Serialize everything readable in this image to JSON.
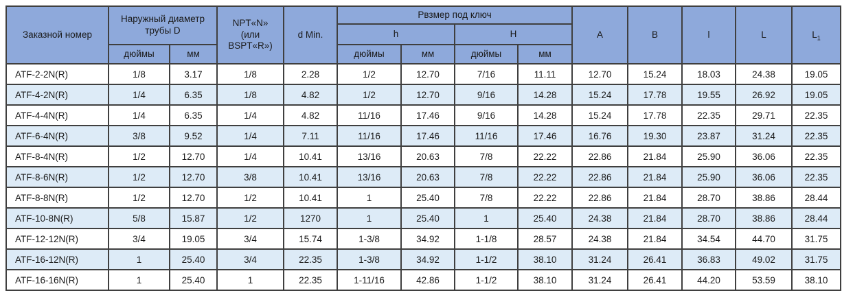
{
  "colors": {
    "header_bg": "#8EA9DB",
    "stripe_bg": "#DDEBF7",
    "row_bg": "#FFFFFF",
    "border": "#3f3f3f",
    "text": "#1a1a1a"
  },
  "table": {
    "header": {
      "order_number": "Заказной номер",
      "outer_diameter": "Наружный диаметр трубы D",
      "npt": "NPT«N»\n(или\nBSPT«R»)",
      "d_min": "d Min.",
      "wrench_size": "Рвзмер под ключ",
      "h_lower": "h",
      "h_upper": "H",
      "inches_d": "дюймы",
      "mm_d": "мм",
      "inches_h": "дюймы",
      "mm_h": "мм",
      "inches_H": "дюймы",
      "mm_H": "мм",
      "A": "A",
      "B": "B",
      "l": "l",
      "L": "L",
      "L1_base": "L",
      "L1_sub": "1"
    },
    "column_keys": [
      "order_number",
      "d_inches",
      "d_mm",
      "npt",
      "d_min",
      "h_inches",
      "h_mm",
      "H_inches",
      "H_mm",
      "A",
      "B",
      "l",
      "L",
      "L1"
    ],
    "rows": [
      [
        "ATF-2-2N(R)",
        "1/8",
        "3.17",
        "1/8",
        "2.28",
        "1/2",
        "12.70",
        "7/16",
        "11.11",
        "12.70",
        "15.24",
        "18.03",
        "24.38",
        "19.05"
      ],
      [
        "ATF-4-2N(R)",
        "1/4",
        "6.35",
        "1/8",
        "4.82",
        "1/2",
        "12.70",
        "9/16",
        "14.28",
        "15.24",
        "17.78",
        "19.55",
        "26.92",
        "19.05"
      ],
      [
        "ATF-4-4N(R)",
        "1/4",
        "6.35",
        "1/4",
        "4.82",
        "11/16",
        "17.46",
        "9/16",
        "14.28",
        "15.24",
        "17.78",
        "22.35",
        "29.71",
        "22.35"
      ],
      [
        "ATF-6-4N(R)",
        "3/8",
        "9.52",
        "1/4",
        "7.11",
        "11/16",
        "17.46",
        "11/16",
        "17.46",
        "16.76",
        "19.30",
        "23.87",
        "31.24",
        "22.35"
      ],
      [
        "ATF-8-4N(R)",
        "1/2",
        "12.70",
        "1/4",
        "10.41",
        "13/16",
        "20.63",
        "7/8",
        "22.22",
        "22.86",
        "21.84",
        "25.90",
        "36.06",
        "22.35"
      ],
      [
        "ATF-8-6N(R)",
        "1/2",
        "12.70",
        "3/8",
        "10.41",
        "13/16",
        "20.63",
        "7/8",
        "22.22",
        "22.86",
        "21.84",
        "25.90",
        "36.06",
        "22.35"
      ],
      [
        "ATF-8-8N(R)",
        "1/2",
        "12.70",
        "1/2",
        "10.41",
        "1",
        "25.40",
        "7/8",
        "22.22",
        "22.86",
        "21.84",
        "28.70",
        "38.86",
        "28.44"
      ],
      [
        "ATF-10-8N(R)",
        "5/8",
        "15.87",
        "1/2",
        "1270",
        "1",
        "25.40",
        "1",
        "25.40",
        "24.38",
        "21.84",
        "28.70",
        "38.86",
        "28.44"
      ],
      [
        "ATF-12-12N(R)",
        "3/4",
        "19.05",
        "3/4",
        "15.74",
        "1-3/8",
        "34.92",
        "1-1/8",
        "28.57",
        "24.38",
        "21.84",
        "34.54",
        "44.70",
        "31.75"
      ],
      [
        "ATF-16-12N(R)",
        "1",
        "25.40",
        "3/4",
        "22.35",
        "1-3/8",
        "34.92",
        "1-1/2",
        "38.10",
        "31.24",
        "26.41",
        "36.83",
        "49.02",
        "31.75"
      ],
      [
        "ATF-16-16N(R)",
        "1",
        "25.40",
        "1",
        "22.35",
        "1-11/16",
        "42.86",
        "1-1/2",
        "38.10",
        "31.24",
        "26.41",
        "44.20",
        "53.59",
        "38.10"
      ]
    ]
  }
}
